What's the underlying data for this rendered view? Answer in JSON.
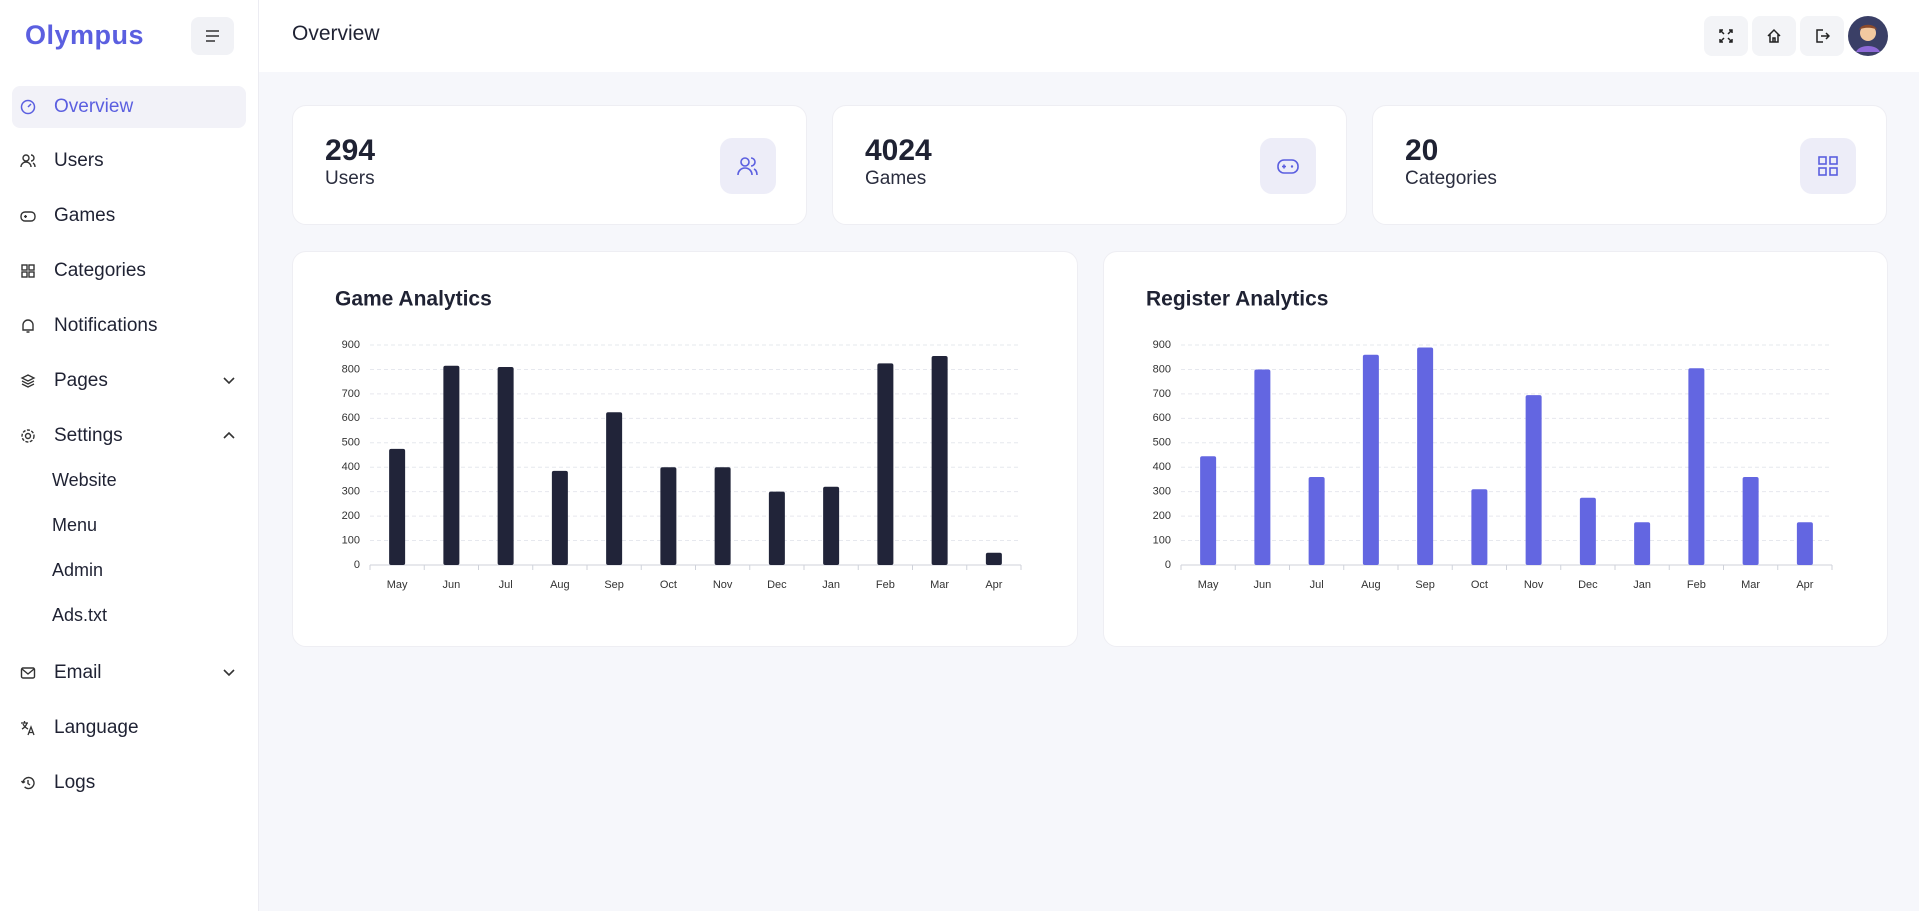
{
  "sidebar": {
    "logo": "Olympus",
    "items": [
      "Overview",
      "Users",
      "Games",
      "Categories",
      "Notifications",
      "Pages",
      "Settings"
    ],
    "settings_children": [
      "Website",
      "Menu",
      "Admin",
      "Ads.txt"
    ],
    "bottom_items": [
      "Email",
      "Language",
      "Logs"
    ]
  },
  "header": {
    "title": "Overview"
  },
  "stats": [
    {
      "value": "294",
      "label": "Users"
    },
    {
      "value": "4024",
      "label": "Games"
    },
    {
      "value": "20",
      "label": "Categories"
    }
  ],
  "chart_data": [
    {
      "type": "bar",
      "title": "Game Analytics",
      "categories": [
        "May",
        "Jun",
        "Jul",
        "Aug",
        "Sep",
        "Oct",
        "Nov",
        "Dec",
        "Jan",
        "Feb",
        "Mar",
        "Apr"
      ],
      "values": [
        475,
        815,
        810,
        385,
        625,
        400,
        400,
        300,
        320,
        825,
        855,
        50
      ],
      "color": "#212439",
      "ylim": [
        0,
        900
      ],
      "yticks": [
        0,
        100,
        200,
        300,
        400,
        500,
        600,
        700,
        800,
        900
      ],
      "grid": true
    },
    {
      "type": "bar",
      "title": "Register Analytics",
      "categories": [
        "May",
        "Jun",
        "Jul",
        "Aug",
        "Sep",
        "Oct",
        "Nov",
        "Dec",
        "Jan",
        "Feb",
        "Mar",
        "Apr"
      ],
      "values": [
        445,
        800,
        360,
        860,
        890,
        310,
        695,
        275,
        175,
        805,
        360,
        175
      ],
      "color": "#6366e1",
      "ylim": [
        0,
        900
      ],
      "yticks": [
        0,
        100,
        200,
        300,
        400,
        500,
        600,
        700,
        800,
        900
      ],
      "grid": true
    }
  ]
}
